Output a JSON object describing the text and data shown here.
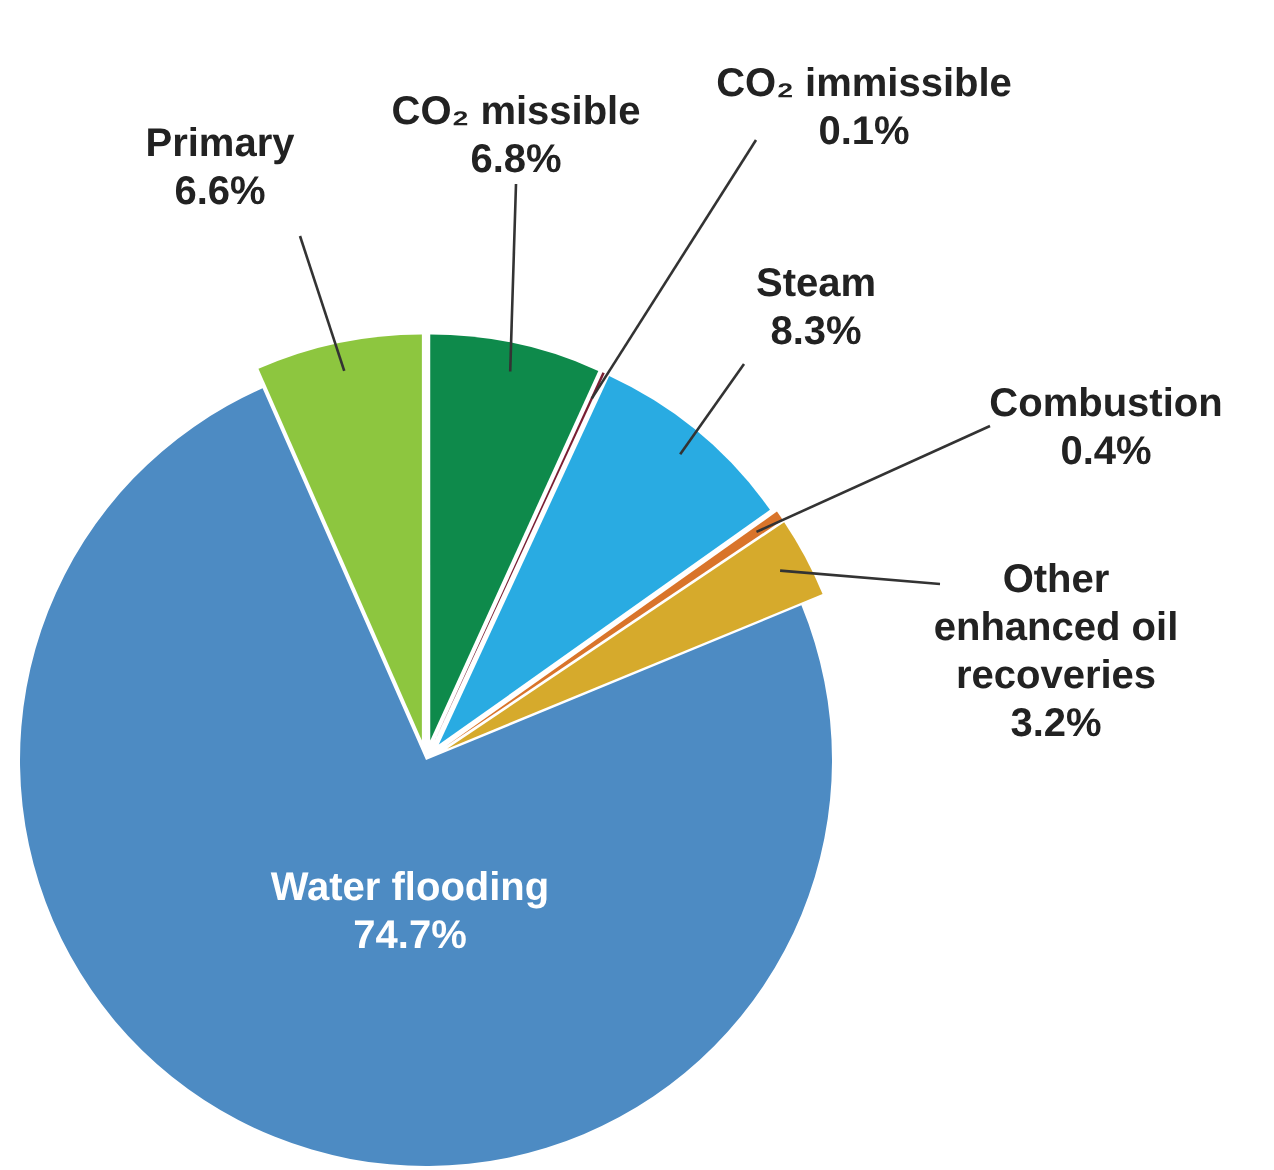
{
  "chart_data": {
    "type": "pie",
    "categories": [
      "Primary",
      "CO₂ missible",
      "CO₂ immissible",
      "Steam",
      "Combustion",
      "Other enhanced oil recoveries",
      "Water flooding"
    ],
    "values": [
      6.6,
      6.8,
      0.1,
      8.3,
      0.4,
      3.2,
      74.7
    ],
    "value_labels": [
      "6.6%",
      "6.8%",
      "0.1%",
      "8.3%",
      "0.4%",
      "3.2%",
      "74.7%"
    ],
    "colors": [
      "#8dc63f",
      "#0e8a4b",
      "#7a1f33",
      "#29abe2",
      "#d9742a",
      "#d6aa2c",
      "#4d8bc3"
    ]
  }
}
